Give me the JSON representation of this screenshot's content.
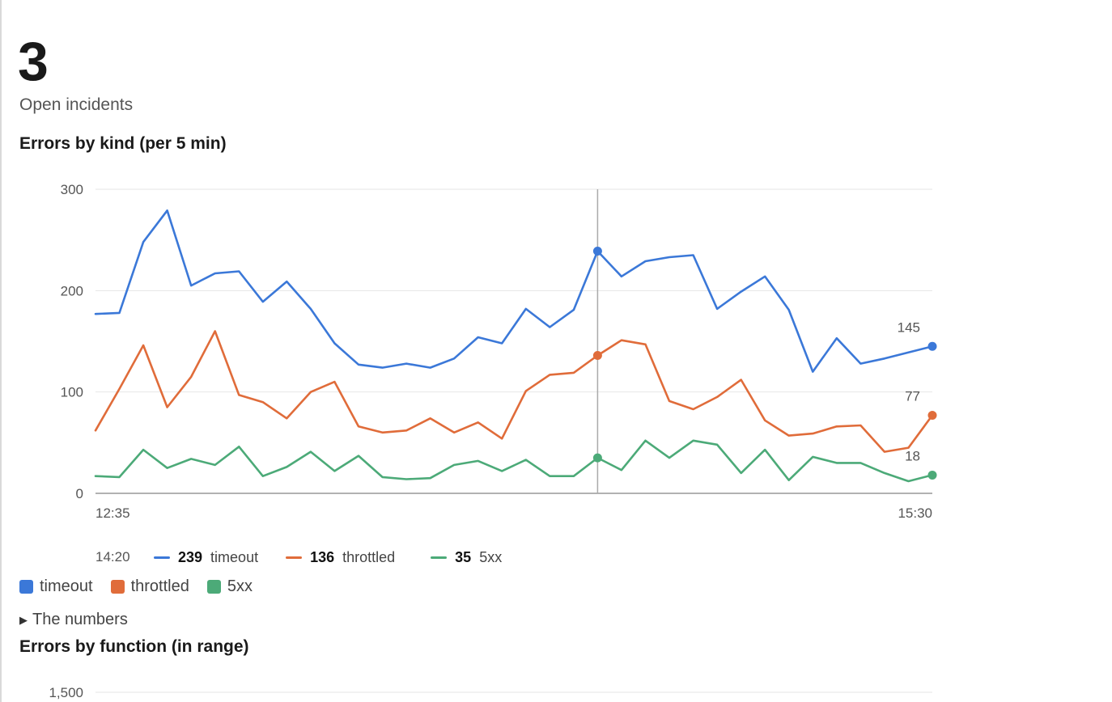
{
  "kpi": {
    "value": "3",
    "label": "Open incidents"
  },
  "chart1_title": "Errors by kind (per 5 min)",
  "chart2_title": "Errors by function (in range)",
  "colors": {
    "timeout": "#3b78d8",
    "throttled": "#e06c3a",
    "5xx": "#4caa78",
    "grid": "#e6e6e6",
    "axis": "#999999",
    "crosshair": "#aaaaaa"
  },
  "tooltip": {
    "time": "14:20",
    "items": [
      {
        "value": "239",
        "name": "timeout"
      },
      {
        "value": "136",
        "name": "throttled"
      },
      {
        "value": "35",
        "name": "5xx"
      }
    ]
  },
  "legend": [
    "timeout",
    "throttled",
    "5xx"
  ],
  "details_label": "The numbers",
  "chart2_first_tick": "1,500",
  "chart_data": [
    {
      "type": "line",
      "title": "Errors by kind (per 5 min)",
      "x_start_label": "12:35",
      "x_end_label": "15:30",
      "ylim": [
        0,
        300
      ],
      "yticks": [
        0,
        100,
        200,
        300
      ],
      "grid": true,
      "crosshair_index": 21,
      "end_labels": [
        "145",
        "77",
        "18"
      ],
      "series": [
        {
          "name": "timeout",
          "values": [
            177,
            178,
            248,
            279,
            205,
            217,
            219,
            189,
            209,
            182,
            148,
            127,
            124,
            128,
            124,
            133,
            154,
            148,
            182,
            164,
            181,
            239,
            214,
            229,
            233,
            235,
            182,
            199,
            214,
            181,
            120,
            153,
            128,
            133,
            139,
            145
          ]
        },
        {
          "name": "throttled",
          "values": [
            62,
            103,
            146,
            85,
            115,
            160,
            97,
            90,
            74,
            100,
            110,
            66,
            60,
            62,
            74,
            60,
            70,
            54,
            101,
            117,
            119,
            136,
            151,
            147,
            91,
            83,
            95,
            112,
            72,
            57,
            59,
            66,
            67,
            41,
            45,
            77
          ]
        },
        {
          "name": "5xx",
          "values": [
            17,
            16,
            43,
            25,
            34,
            28,
            46,
            17,
            26,
            41,
            22,
            37,
            16,
            14,
            15,
            28,
            32,
            22,
            33,
            17,
            17,
            35,
            23,
            52,
            35,
            52,
            48,
            20,
            43,
            13,
            36,
            30,
            30,
            20,
            12,
            18
          ]
        }
      ]
    }
  ]
}
